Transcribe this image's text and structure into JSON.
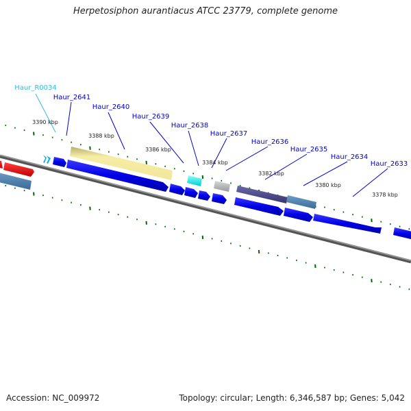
{
  "title": "Herpetosiphon aurantiacus ATCC 23779, complete genome",
  "footer": {
    "accession": "Accession: NC_009972",
    "summary": "Topology: circular; Length: 6,346,587 bp; Genes: 5,042"
  },
  "colors": {
    "gene_label": "#0000cc",
    "rna_label": "#33bbdd",
    "backbone": "#808080",
    "tick": "#006600"
  },
  "gene_labels": [
    "Haur_R0034",
    "Haur_2641",
    "Haur_2640",
    "Haur_2639",
    "Haur_2638",
    "Haur_2637",
    "Haur_2636",
    "Haur_2635",
    "Haur_2634",
    "Haur_2633"
  ],
  "scale_labels": [
    "3390 kbp",
    "3388 kbp",
    "3386 kbp",
    "3384 kbp",
    "3382 kbp",
    "3380 kbp",
    "3378 kbp"
  ]
}
